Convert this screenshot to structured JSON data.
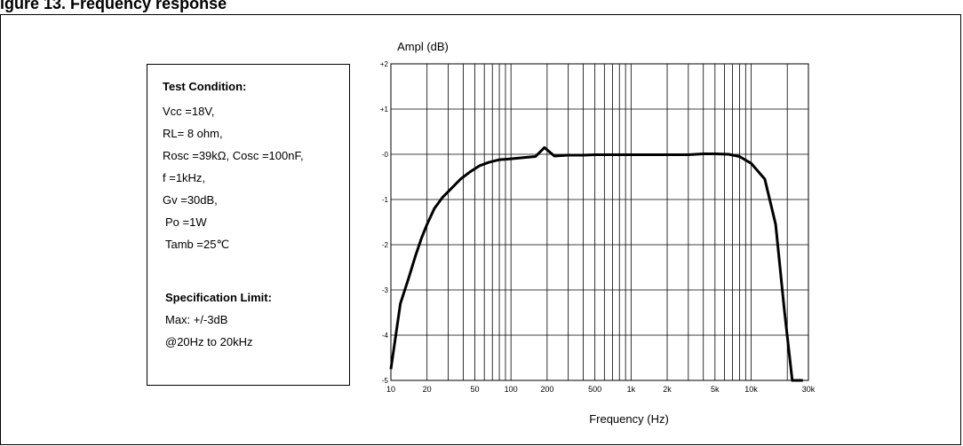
{
  "figure_heading": "igure 13. Frequency response",
  "test_condition": {
    "title": "Test Condition:",
    "lines": [
      "Vcc =18V,",
      "RL= 8 ohm,",
      "Rosc =39kΩ, Cosc =100nF,",
      "f =1kHz,",
      "Gv =30dB,",
      "Po =1W",
      "Tamb =25℃"
    ],
    "spec_title": "Specification Limit:",
    "spec_lines": [
      "Max: +/-3dB",
      "@20Hz to 20kHz"
    ]
  },
  "chart_data": {
    "type": "line",
    "title": "",
    "xlabel": "Frequency (Hz)",
    "ylabel": "Ampl (dB)",
    "xscale": "log",
    "xlim": [
      10,
      30000
    ],
    "ylim": [
      -5,
      2
    ],
    "grid": true,
    "xtick_values": [
      10,
      20,
      50,
      100,
      200,
      500,
      1000,
      2000,
      5000,
      10000,
      30000
    ],
    "xtick_labels": [
      "10",
      "20",
      "50",
      "100",
      "200",
      "500",
      "1k",
      "2k",
      "5k",
      "10k",
      "30k"
    ],
    "ytick_values": [
      2,
      1,
      0,
      -1,
      -2,
      -3,
      -4,
      -5
    ],
    "ytick_labels": [
      "+2",
      "+1",
      "-0",
      "-1",
      "-2",
      "-3",
      "-4",
      "-5"
    ],
    "series": [
      {
        "color": "#000000",
        "x": [
          10,
          12,
          14,
          16,
          18,
          20,
          23,
          27,
          32,
          38,
          45,
          55,
          65,
          80,
          100,
          130,
          160,
          190,
          230,
          300,
          400,
          500,
          700,
          1000,
          1500,
          2000,
          3000,
          4000,
          5000,
          6500,
          8000,
          10000,
          13000,
          16000,
          19000,
          22000,
          25000,
          27000
        ],
        "y": [
          -4.75,
          -3.3,
          -2.75,
          -2.25,
          -1.85,
          -1.55,
          -1.2,
          -0.95,
          -0.75,
          -0.55,
          -0.4,
          -0.25,
          -0.18,
          -0.12,
          -0.1,
          -0.07,
          -0.05,
          0.15,
          -0.04,
          -0.02,
          -0.02,
          -0.01,
          -0.01,
          -0.01,
          -0.01,
          -0.01,
          -0.01,
          0.01,
          0.01,
          0.0,
          -0.05,
          -0.2,
          -0.55,
          -1.55,
          -3.5,
          -5.0,
          -5.0,
          -5.0
        ]
      }
    ]
  }
}
